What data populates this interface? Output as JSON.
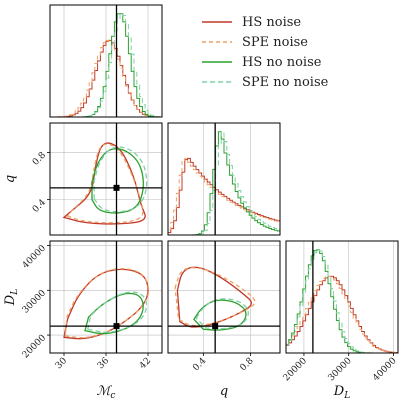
{
  "chart_data": {
    "type": "corner",
    "parameters": [
      {
        "key": "Mc",
        "label": "ℳ_c",
        "range": [
          28,
          44
        ],
        "ticks": [
          30,
          36,
          42
        ],
        "truth": 37.5
      },
      {
        "key": "q",
        "label": "q",
        "range": [
          0.1,
          1.05
        ],
        "ticks": [
          0.4,
          0.8
        ],
        "truth": 0.5
      },
      {
        "key": "DL",
        "label": "D_L",
        "range": [
          16000,
          41000
        ],
        "ticks": [
          20000,
          30000,
          40000
        ],
        "truth": 22000
      }
    ],
    "legend_position": "top-right",
    "grid": true,
    "series": [
      {
        "name": "HS noise",
        "color": "#c0392b",
        "dash": "none",
        "Mc": {
          "mean": 36.5,
          "sd": 1.9
        },
        "q": {
          "mode": 0.27,
          "tail": 0.45
        },
        "DL": {
          "mean": 26000,
          "sd": 4500
        },
        "contour_Mc_q": [
          [
            30,
            0.25
          ],
          [
            33,
            0.2
          ],
          [
            38,
            0.19
          ],
          [
            42,
            0.22
          ],
          [
            41,
            0.35
          ],
          [
            40,
            0.6
          ],
          [
            38,
            0.85
          ],
          [
            35.5,
            0.9
          ],
          [
            34.5,
            0.7
          ],
          [
            34,
            0.45
          ],
          [
            31,
            0.3
          ]
        ],
        "contour_Mc_DL": [
          [
            30,
            19500
          ],
          [
            33,
            19000
          ],
          [
            37,
            21000
          ],
          [
            42,
            27000
          ],
          [
            42,
            33000
          ],
          [
            39,
            35000
          ],
          [
            35,
            34000
          ],
          [
            32,
            29000
          ],
          [
            30.5,
            23500
          ]
        ],
        "contour_q_DL": [
          [
            0.18,
            30000
          ],
          [
            0.22,
            34500
          ],
          [
            0.35,
            35500
          ],
          [
            0.55,
            33000
          ],
          [
            0.75,
            29000
          ],
          [
            0.83,
            27000
          ],
          [
            0.72,
            25000
          ],
          [
            0.5,
            22500
          ],
          [
            0.3,
            21500
          ],
          [
            0.2,
            23000
          ]
        ]
      },
      {
        "name": "SPE noise",
        "color": "#f0a060",
        "dash": "4,3",
        "Mc": {
          "mean": 36.3,
          "sd": 2.0
        },
        "q": {
          "mode": 0.25,
          "tail": 0.45
        },
        "DL": {
          "mean": 25500,
          "sd": 4600
        },
        "contour_Mc_q": [
          [
            30.5,
            0.26
          ],
          [
            33,
            0.21
          ],
          [
            38,
            0.2
          ],
          [
            41.5,
            0.24
          ],
          [
            41,
            0.4
          ],
          [
            39.5,
            0.65
          ],
          [
            37.5,
            0.86
          ],
          [
            35.2,
            0.88
          ],
          [
            34.3,
            0.68
          ],
          [
            33.8,
            0.46
          ],
          [
            31.2,
            0.31
          ]
        ],
        "contour_Mc_DL": [
          [
            30.2,
            19800
          ],
          [
            33.5,
            19200
          ],
          [
            37.5,
            21500
          ],
          [
            42.3,
            27500
          ],
          [
            41.8,
            33500
          ],
          [
            38.5,
            35200
          ],
          [
            34.8,
            33800
          ],
          [
            31.8,
            28800
          ],
          [
            30.4,
            24000
          ]
        ],
        "contour_q_DL": [
          [
            0.16,
            30500
          ],
          [
            0.21,
            34800
          ],
          [
            0.36,
            35200
          ],
          [
            0.56,
            33200
          ],
          [
            0.78,
            29500
          ],
          [
            0.86,
            27200
          ],
          [
            0.74,
            25200
          ],
          [
            0.52,
            22800
          ],
          [
            0.31,
            21800
          ],
          [
            0.19,
            23500
          ]
        ]
      },
      {
        "name": "HS no noise",
        "color": "#2ca02c",
        "dash": "none",
        "Mc": {
          "mean": 38.0,
          "sd": 1.4
        },
        "q": {
          "mode": 0.55,
          "tail": 0.15
        },
        "DL": {
          "mean": 23000,
          "sd": 3000
        },
        "contour_Mc_q": [
          [
            34,
            0.4
          ],
          [
            35,
            0.3
          ],
          [
            38,
            0.28
          ],
          [
            40.5,
            0.33
          ],
          [
            41.5,
            0.5
          ],
          [
            41,
            0.7
          ],
          [
            39,
            0.82
          ],
          [
            36.5,
            0.84
          ],
          [
            34.8,
            0.72
          ],
          [
            34,
            0.55
          ]
        ],
        "contour_Mc_DL": [
          [
            33,
            21000
          ],
          [
            36,
            20000
          ],
          [
            40,
            22000
          ],
          [
            41.5,
            25500
          ],
          [
            41,
            29000
          ],
          [
            38.5,
            29500
          ],
          [
            35.5,
            27000
          ],
          [
            33.5,
            24000
          ]
        ],
        "contour_q_DL": [
          [
            0.32,
            23500
          ],
          [
            0.38,
            26000
          ],
          [
            0.5,
            28000
          ],
          [
            0.68,
            27500
          ],
          [
            0.78,
            25000
          ],
          [
            0.72,
            22000
          ],
          [
            0.55,
            21000
          ],
          [
            0.4,
            21300
          ]
        ]
      },
      {
        "name": "SPE no noise",
        "color": "#7fd1a8",
        "dash": "5,3",
        "Mc": {
          "mean": 38.3,
          "sd": 1.5
        },
        "q": {
          "mode": 0.57,
          "tail": 0.16
        },
        "DL": {
          "mean": 23300,
          "sd": 3100
        },
        "contour_Mc_q": [
          [
            34.3,
            0.41
          ],
          [
            35.4,
            0.31
          ],
          [
            38.4,
            0.29
          ],
          [
            41,
            0.35
          ],
          [
            42,
            0.52
          ],
          [
            41.4,
            0.72
          ],
          [
            39.3,
            0.84
          ],
          [
            36.8,
            0.85
          ],
          [
            35.1,
            0.73
          ],
          [
            34.3,
            0.56
          ]
        ],
        "contour_Mc_DL": [
          [
            33.4,
            21300
          ],
          [
            36.4,
            20300
          ],
          [
            40.4,
            22300
          ],
          [
            42,
            25800
          ],
          [
            41.4,
            29300
          ],
          [
            38.8,
            29800
          ],
          [
            35.8,
            27300
          ],
          [
            33.8,
            24300
          ]
        ],
        "contour_q_DL": [
          [
            0.34,
            23800
          ],
          [
            0.4,
            26300
          ],
          [
            0.52,
            28300
          ],
          [
            0.7,
            27800
          ],
          [
            0.8,
            25300
          ],
          [
            0.74,
            22300
          ],
          [
            0.57,
            21300
          ],
          [
            0.42,
            21600
          ]
        ]
      }
    ]
  }
}
